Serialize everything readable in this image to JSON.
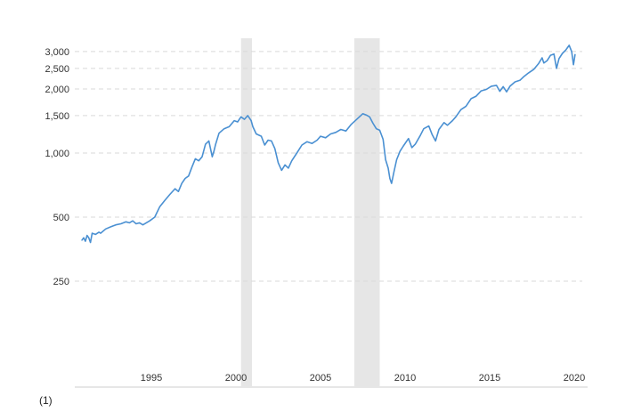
{
  "chart_data": {
    "type": "line",
    "title": "",
    "xlabel": "",
    "ylabel": "",
    "y_scale": "log",
    "xlim": [
      1990.75,
      2020.0
    ],
    "ylim": [
      100,
      3600
    ],
    "y_ticks": [
      {
        "value": 250,
        "label": "250"
      },
      {
        "value": 500,
        "label": "500"
      },
      {
        "value": 1000,
        "label": "1,000"
      },
      {
        "value": 1500,
        "label": "1,500"
      },
      {
        "value": 2000,
        "label": "2,000"
      },
      {
        "value": 2500,
        "label": "2,500"
      },
      {
        "value": 3000,
        "label": "3,000"
      }
    ],
    "x_ticks": [
      {
        "value": 1995,
        "label": "1995"
      },
      {
        "value": 2000,
        "label": "2000"
      },
      {
        "value": 2005,
        "label": "2005"
      },
      {
        "value": 2010,
        "label": "2010"
      },
      {
        "value": 2015,
        "label": "2015"
      },
      {
        "value": 2020,
        "label": "2020"
      }
    ],
    "grid": "horizontal dashed",
    "recessions": [
      {
        "start": 2000.3,
        "end": 2000.95
      },
      {
        "start": 2007.0,
        "end": 2008.5
      }
    ],
    "colors": {
      "line": "#4a90d2",
      "recession": "#e6e6e6",
      "grid": "#d9d9d9"
    },
    "series": [
      {
        "values": [
          [
            1990.9,
            390
          ],
          [
            1991.0,
            400
          ],
          [
            1991.1,
            385
          ],
          [
            1991.2,
            410
          ],
          [
            1991.3,
            400
          ],
          [
            1991.4,
            380
          ],
          [
            1991.5,
            420
          ],
          [
            1991.7,
            415
          ],
          [
            1991.9,
            425
          ],
          [
            1992.0,
            420
          ],
          [
            1992.3,
            440
          ],
          [
            1992.6,
            450
          ],
          [
            1992.9,
            460
          ],
          [
            1993.2,
            465
          ],
          [
            1993.5,
            475
          ],
          [
            1993.7,
            470
          ],
          [
            1993.9,
            480
          ],
          [
            1994.1,
            465
          ],
          [
            1994.3,
            470
          ],
          [
            1994.5,
            460
          ],
          [
            1994.7,
            470
          ],
          [
            1994.9,
            480
          ],
          [
            1995.2,
            500
          ],
          [
            1995.5,
            560
          ],
          [
            1995.8,
            600
          ],
          [
            1996.1,
            640
          ],
          [
            1996.4,
            680
          ],
          [
            1996.6,
            660
          ],
          [
            1996.8,
            720
          ],
          [
            1997.0,
            760
          ],
          [
            1997.2,
            780
          ],
          [
            1997.4,
            860
          ],
          [
            1997.6,
            940
          ],
          [
            1997.8,
            920
          ],
          [
            1998.0,
            960
          ],
          [
            1998.2,
            1100
          ],
          [
            1998.4,
            1140
          ],
          [
            1998.6,
            960
          ],
          [
            1998.7,
            1020
          ],
          [
            1998.8,
            1100
          ],
          [
            1999.0,
            1240
          ],
          [
            1999.3,
            1300
          ],
          [
            1999.6,
            1330
          ],
          [
            1999.9,
            1420
          ],
          [
            2000.1,
            1400
          ],
          [
            2000.3,
            1480
          ],
          [
            2000.5,
            1440
          ],
          [
            2000.7,
            1500
          ],
          [
            2000.9,
            1420
          ],
          [
            2001.0,
            1330
          ],
          [
            2001.2,
            1230
          ],
          [
            2001.5,
            1200
          ],
          [
            2001.7,
            1090
          ],
          [
            2001.9,
            1150
          ],
          [
            2002.1,
            1140
          ],
          [
            2002.3,
            1050
          ],
          [
            2002.5,
            900
          ],
          [
            2002.7,
            830
          ],
          [
            2002.9,
            880
          ],
          [
            2003.1,
            850
          ],
          [
            2003.3,
            920
          ],
          [
            2003.6,
            1000
          ],
          [
            2003.9,
            1090
          ],
          [
            2004.2,
            1130
          ],
          [
            2004.5,
            1110
          ],
          [
            2004.8,
            1150
          ],
          [
            2005.0,
            1200
          ],
          [
            2005.3,
            1180
          ],
          [
            2005.6,
            1230
          ],
          [
            2005.9,
            1250
          ],
          [
            2006.2,
            1290
          ],
          [
            2006.5,
            1270
          ],
          [
            2006.8,
            1360
          ],
          [
            2007.1,
            1430
          ],
          [
            2007.3,
            1480
          ],
          [
            2007.5,
            1530
          ],
          [
            2007.7,
            1510
          ],
          [
            2007.9,
            1480
          ],
          [
            2008.1,
            1380
          ],
          [
            2008.3,
            1300
          ],
          [
            2008.5,
            1280
          ],
          [
            2008.7,
            1160
          ],
          [
            2008.85,
            930
          ],
          [
            2009.0,
            850
          ],
          [
            2009.1,
            760
          ],
          [
            2009.2,
            720
          ],
          [
            2009.35,
            820
          ],
          [
            2009.5,
            930
          ],
          [
            2009.7,
            1020
          ],
          [
            2009.9,
            1080
          ],
          [
            2010.2,
            1170
          ],
          [
            2010.4,
            1060
          ],
          [
            2010.6,
            1100
          ],
          [
            2010.9,
            1210
          ],
          [
            2011.1,
            1300
          ],
          [
            2011.4,
            1340
          ],
          [
            2011.6,
            1220
          ],
          [
            2011.8,
            1140
          ],
          [
            2012.0,
            1290
          ],
          [
            2012.3,
            1390
          ],
          [
            2012.5,
            1350
          ],
          [
            2012.8,
            1420
          ],
          [
            2013.0,
            1480
          ],
          [
            2013.3,
            1600
          ],
          [
            2013.6,
            1660
          ],
          [
            2013.9,
            1800
          ],
          [
            2014.2,
            1850
          ],
          [
            2014.5,
            1960
          ],
          [
            2014.8,
            1990
          ],
          [
            2015.1,
            2060
          ],
          [
            2015.4,
            2080
          ],
          [
            2015.6,
            1950
          ],
          [
            2015.8,
            2050
          ],
          [
            2016.0,
            1940
          ],
          [
            2016.2,
            2060
          ],
          [
            2016.5,
            2160
          ],
          [
            2016.8,
            2200
          ],
          [
            2017.0,
            2280
          ],
          [
            2017.3,
            2380
          ],
          [
            2017.6,
            2470
          ],
          [
            2017.9,
            2640
          ],
          [
            2018.1,
            2800
          ],
          [
            2018.2,
            2650
          ],
          [
            2018.4,
            2720
          ],
          [
            2018.6,
            2880
          ],
          [
            2018.8,
            2920
          ],
          [
            2018.95,
            2500
          ],
          [
            2019.1,
            2780
          ],
          [
            2019.3,
            2940
          ],
          [
            2019.5,
            3050
          ],
          [
            2019.7,
            3210
          ],
          [
            2019.85,
            3000
          ],
          [
            2019.95,
            2600
          ],
          [
            2020.05,
            2900
          ]
        ]
      }
    ]
  },
  "footnote": "(1)"
}
